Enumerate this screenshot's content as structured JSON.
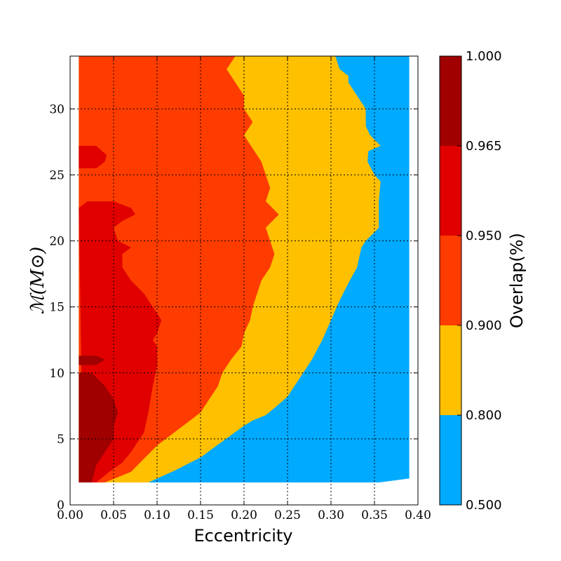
{
  "chart_data": {
    "type": "contourf",
    "xlabel": "Eccentricity",
    "ylabel": "ℳ(M⊙)",
    "xlim": [
      0.0,
      0.4
    ],
    "ylim": [
      0,
      34
    ],
    "xticks": [
      "0.00",
      "0.05",
      "0.10",
      "0.15",
      "0.20",
      "0.25",
      "0.30",
      "0.35",
      "0.40"
    ],
    "yticks": [
      "0",
      "5",
      "10",
      "15",
      "20",
      "25",
      "30"
    ],
    "grid": true,
    "colorbar": {
      "label": "Overlap(%)",
      "levels": [
        "0.500",
        "0.800",
        "0.900",
        "0.950",
        "0.965",
        "1.000"
      ],
      "bands": [
        {
          "range": [
            0.5,
            0.8
          ],
          "color": "#00aaff"
        },
        {
          "range": [
            0.8,
            0.9
          ],
          "color": "#ffc000"
        },
        {
          "range": [
            0.9,
            0.95
          ],
          "color": "#ff3c00"
        },
        {
          "range": [
            0.95,
            0.965
          ],
          "color": "#e00000"
        },
        {
          "range": [
            0.965,
            1.0
          ],
          "color": "#a00000"
        }
      ]
    },
    "data_domain": {
      "x": [
        0.01,
        0.39
      ],
      "y": [
        1.7,
        34
      ]
    },
    "contours": {
      "0.800": [
        [
          0.09,
          1.7
        ],
        [
          0.12,
          2.6
        ],
        [
          0.15,
          3.6
        ],
        [
          0.175,
          4.8
        ],
        [
          0.2,
          6.0
        ],
        [
          0.21,
          6.4
        ],
        [
          0.225,
          6.8
        ],
        [
          0.238,
          7.5
        ],
        [
          0.25,
          8.2
        ],
        [
          0.26,
          9.2
        ],
        [
          0.268,
          10.0
        ],
        [
          0.278,
          11.0
        ],
        [
          0.29,
          12.5
        ],
        [
          0.3,
          14.0
        ],
        [
          0.31,
          15.5
        ],
        [
          0.32,
          16.8
        ],
        [
          0.33,
          18.0
        ],
        [
          0.335,
          19.5
        ],
        [
          0.34,
          20.0
        ],
        [
          0.355,
          21.0
        ],
        [
          0.355,
          23.0
        ],
        [
          0.357,
          24.5
        ],
        [
          0.35,
          25.0
        ],
        [
          0.342,
          26.0
        ],
        [
          0.343,
          26.8
        ],
        [
          0.357,
          27.2
        ],
        [
          0.345,
          28.0
        ],
        [
          0.34,
          28.7
        ],
        [
          0.34,
          30.0
        ],
        [
          0.33,
          31.0
        ],
        [
          0.32,
          32.0
        ],
        [
          0.32,
          32.5
        ],
        [
          0.31,
          33.0
        ],
        [
          0.305,
          34.0
        ]
      ],
      "0.900": [
        [
          0.04,
          1.7
        ],
        [
          0.07,
          2.5
        ],
        [
          0.1,
          4.5
        ],
        [
          0.13,
          6.0
        ],
        [
          0.15,
          7.0
        ],
        [
          0.16,
          8.0
        ],
        [
          0.17,
          9.0
        ],
        [
          0.175,
          10.0
        ],
        [
          0.185,
          11.0
        ],
        [
          0.197,
          12.0
        ],
        [
          0.2,
          13.0
        ],
        [
          0.207,
          14.0
        ],
        [
          0.21,
          15.0
        ],
        [
          0.215,
          16.0
        ],
        [
          0.22,
          17.0
        ],
        [
          0.23,
          18.0
        ],
        [
          0.235,
          19.0
        ],
        [
          0.23,
          20.0
        ],
        [
          0.225,
          21.0
        ],
        [
          0.24,
          22.0
        ],
        [
          0.225,
          23.0
        ],
        [
          0.23,
          24.0
        ],
        [
          0.225,
          25.0
        ],
        [
          0.22,
          26.0
        ],
        [
          0.21,
          27.0
        ],
        [
          0.2,
          28.0
        ],
        [
          0.21,
          29.0
        ],
        [
          0.2,
          30.0
        ],
        [
          0.2,
          31.0
        ],
        [
          0.19,
          32.0
        ],
        [
          0.18,
          33.0
        ],
        [
          0.19,
          34.0
        ]
      ],
      "0.950": [
        [
          0.015,
          1.7
        ],
        [
          0.03,
          1.7
        ],
        [
          0.045,
          2.5
        ],
        [
          0.06,
          3.2
        ],
        [
          0.07,
          4.0
        ],
        [
          0.085,
          5.5
        ],
        [
          0.09,
          7.0
        ],
        [
          0.095,
          9.0
        ],
        [
          0.1,
          10.5
        ],
        [
          0.1,
          12.0
        ],
        [
          0.095,
          12.5
        ],
        [
          0.1,
          13.0
        ],
        [
          0.105,
          14.0
        ],
        [
          0.1,
          14.5
        ],
        [
          0.095,
          15.0
        ],
        [
          0.085,
          16.0
        ],
        [
          0.07,
          17.0
        ],
        [
          0.06,
          18.0
        ],
        [
          0.06,
          19.0
        ],
        [
          0.07,
          19.5
        ],
        [
          0.055,
          20.0
        ],
        [
          0.05,
          21.0
        ],
        [
          0.06,
          21.5
        ],
        [
          0.075,
          22.0
        ],
        [
          0.07,
          22.5
        ],
        [
          0.05,
          23.0
        ],
        [
          0.02,
          23.0
        ],
        [
          0.01,
          22.5
        ]
      ],
      "0.965": [
        [
          0.01,
          1.7
        ],
        [
          0.025,
          1.7
        ],
        [
          0.03,
          3.0
        ],
        [
          0.04,
          4.0
        ],
        [
          0.05,
          5.0
        ],
        [
          0.05,
          6.0
        ],
        [
          0.055,
          7.0
        ],
        [
          0.05,
          8.0
        ],
        [
          0.04,
          9.0
        ],
        [
          0.025,
          10.0
        ],
        [
          0.01,
          10.0
        ]
      ]
    }
  }
}
